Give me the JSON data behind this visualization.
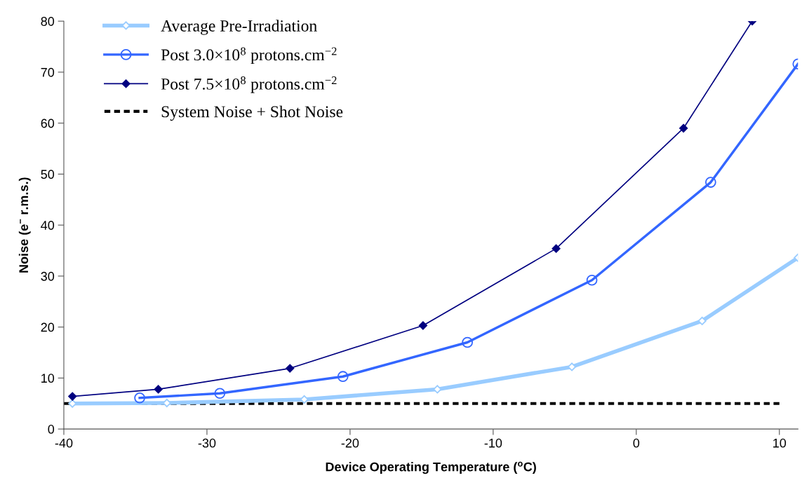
{
  "chart_data": {
    "type": "line",
    "xlabel": "Device Operating Temperature ($^{o}$C)",
    "ylabel": "Noise (e$^{−}$ r.m.s.)",
    "xlim": [
      -40,
      11.3
    ],
    "xticks": [
      -40,
      -30,
      -20,
      -10,
      0,
      10
    ],
    "ylim": [
      0,
      80
    ],
    "yticks": [
      0,
      10,
      20,
      30,
      40,
      50,
      60,
      70,
      80
    ],
    "grid": false,
    "legend": "top left",
    "series": [
      {
        "name": "Average Pre-Irradiation",
        "color": "#99ccff",
        "marker": "diamond",
        "line_style": "solid",
        "x": [
          -39.4,
          -32.8,
          -23.2,
          -13.9,
          -4.5,
          4.6,
          11.3
        ],
        "values": [
          5.0,
          5.1,
          5.8,
          7.8,
          12.2,
          21.2,
          33.6
        ]
      },
      {
        "name": "Post 3.0×10$^{8}$ protons.cm$^{−2}$",
        "color": "#3366ff",
        "marker": "circle",
        "line_style": "solid",
        "x": [
          -34.7,
          -29.1,
          -20.5,
          -11.8,
          -3.1,
          5.2,
          11.3
        ],
        "values": [
          6.1,
          7.0,
          10.3,
          17.0,
          29.2,
          48.4,
          71.6
        ]
      },
      {
        "name": "Post 7.5×10$^{8}$ protons.cm$^{−2}$",
        "color": "#000080",
        "marker": "diamond",
        "line_style": "solid",
        "x": [
          -39.4,
          -33.4,
          -24.2,
          -14.9,
          -5.6,
          3.3,
          8.1
        ],
        "values": [
          6.4,
          7.8,
          11.9,
          20.3,
          35.4,
          59.0,
          80
        ]
      },
      {
        "name": "System Noise + Shot Noise",
        "color": "#000000",
        "marker": "none",
        "line_style": "dashed",
        "x": [
          -40,
          10
        ],
        "values": [
          5,
          5
        ]
      }
    ]
  }
}
